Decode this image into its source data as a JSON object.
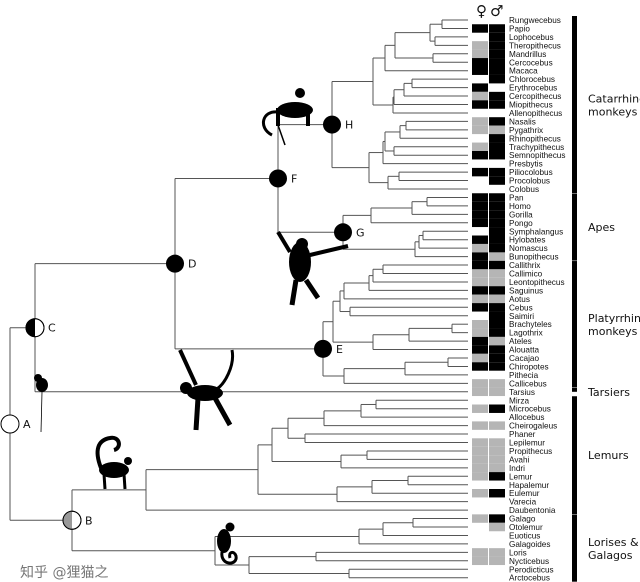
{
  "colors": {
    "present": "#000000",
    "partial": "#b5b5b5",
    "absent": "#ffffff",
    "branch": "#555555"
  },
  "sex_headers": {
    "female": "♀",
    "male": "♂"
  },
  "nodes": [
    {
      "label": "A",
      "fill": "white"
    },
    {
      "label": "B",
      "fill": "half-gray"
    },
    {
      "label": "C",
      "fill": "half-black"
    },
    {
      "label": "D",
      "fill": "black"
    },
    {
      "label": "E",
      "fill": "black"
    },
    {
      "label": "F",
      "fill": "black"
    },
    {
      "label": "G",
      "fill": "black"
    },
    {
      "label": "H",
      "fill": "black"
    }
  ],
  "groups": [
    {
      "line1": "Catarrhine",
      "line2": "monkeys"
    },
    {
      "line1": "Apes",
      "line2": ""
    },
    {
      "line1": "Platyrrhine",
      "line2": "monkeys"
    },
    {
      "line1": "Tarsiers",
      "line2": ""
    },
    {
      "line1": "Lemurs",
      "line2": ""
    },
    {
      "line1": "Lorises &",
      "line2": "Galagos"
    }
  ],
  "genera": [
    {
      "name": "Rungwecebus",
      "f": "w",
      "m": "w"
    },
    {
      "name": "Papio",
      "f": "b",
      "m": "b"
    },
    {
      "name": "Lophocebus",
      "f": "w",
      "m": "b"
    },
    {
      "name": "Theropithecus",
      "f": "g",
      "m": "b"
    },
    {
      "name": "Mandrillus",
      "f": "g",
      "m": "b"
    },
    {
      "name": "Cercocebus",
      "f": "b",
      "m": "b"
    },
    {
      "name": "Macaca",
      "f": "b",
      "m": "b"
    },
    {
      "name": "Chlorocebus",
      "f": "w",
      "m": "b"
    },
    {
      "name": "Erythrocebus",
      "f": "b",
      "m": "w"
    },
    {
      "name": "Cercopithecus",
      "f": "g",
      "m": "b"
    },
    {
      "name": "Miopithecus",
      "f": "b",
      "m": "b"
    },
    {
      "name": "Allenopithecus",
      "f": "w",
      "m": "w"
    },
    {
      "name": "Nasalis",
      "f": "g",
      "m": "b"
    },
    {
      "name": "Pygathrix",
      "f": "g",
      "m": "g"
    },
    {
      "name": "Rhinopithecus",
      "f": "w",
      "m": "b"
    },
    {
      "name": "Trachypithecus",
      "f": "g",
      "m": "b"
    },
    {
      "name": "Semnopithecus",
      "f": "b",
      "m": "b"
    },
    {
      "name": "Presbytis",
      "f": "w",
      "m": "w"
    },
    {
      "name": "Piliocolobus",
      "f": "b",
      "m": "b"
    },
    {
      "name": "Procolobus",
      "f": "w",
      "m": "b"
    },
    {
      "name": "Colobus",
      "f": "w",
      "m": "w"
    },
    {
      "name": "Pan",
      "f": "b",
      "m": "b"
    },
    {
      "name": "Homo",
      "f": "b",
      "m": "b"
    },
    {
      "name": "Gorilla",
      "f": "b",
      "m": "b"
    },
    {
      "name": "Pongo",
      "f": "b",
      "m": "b"
    },
    {
      "name": "Symphalangus",
      "f": "w",
      "m": "b"
    },
    {
      "name": "Hylobates",
      "f": "b",
      "m": "b"
    },
    {
      "name": "Nomascus",
      "f": "g",
      "m": "b"
    },
    {
      "name": "Bunopithecus",
      "f": "b",
      "m": "g"
    },
    {
      "name": "Callithrix",
      "f": "b",
      "m": "b"
    },
    {
      "name": "Callimico",
      "f": "g",
      "m": "g"
    },
    {
      "name": "Leontopithecus",
      "f": "g",
      "m": "g"
    },
    {
      "name": "Saguinus",
      "f": "b",
      "m": "b"
    },
    {
      "name": "Aotus",
      "f": "g",
      "m": "g"
    },
    {
      "name": "Cebus",
      "f": "b",
      "m": "b"
    },
    {
      "name": "Saimiri",
      "f": "w",
      "m": "b"
    },
    {
      "name": "Brachyteles",
      "f": "g",
      "m": "b"
    },
    {
      "name": "Lagothrix",
      "f": "g",
      "m": "b"
    },
    {
      "name": "Ateles",
      "f": "b",
      "m": "g"
    },
    {
      "name": "Alouatta",
      "f": "b",
      "m": "b"
    },
    {
      "name": "Cacajao",
      "f": "g",
      "m": "b"
    },
    {
      "name": "Chiropotes",
      "f": "b",
      "m": "b"
    },
    {
      "name": "Pithecia",
      "f": "w",
      "m": "w"
    },
    {
      "name": "Callicebus",
      "f": "g",
      "m": "g"
    },
    {
      "name": "Tarsius",
      "f": "g",
      "m": "g"
    },
    {
      "name": "Mirza",
      "f": "w",
      "m": "w"
    },
    {
      "name": "Microcebus",
      "f": "g",
      "m": "b"
    },
    {
      "name": "Allocebus",
      "f": "w",
      "m": "w"
    },
    {
      "name": "Cheirogaleus",
      "f": "g",
      "m": "g"
    },
    {
      "name": "Phaner",
      "f": "w",
      "m": "w"
    },
    {
      "name": "Lepilemur",
      "f": "g",
      "m": "g"
    },
    {
      "name": "Propithecus",
      "f": "g",
      "m": "g"
    },
    {
      "name": "Avahi",
      "f": "g",
      "m": "g"
    },
    {
      "name": "Indri",
      "f": "g",
      "m": "g"
    },
    {
      "name": "Lemur",
      "f": "g",
      "m": "b"
    },
    {
      "name": "Hapalemur",
      "f": "w",
      "m": "w"
    },
    {
      "name": "Eulemur",
      "f": "g",
      "m": "b"
    },
    {
      "name": "Varecia",
      "f": "w",
      "m": "w"
    },
    {
      "name": "Daubentonia",
      "f": "w",
      "m": "w"
    },
    {
      "name": "Galago",
      "f": "g",
      "m": "b"
    },
    {
      "name": "Otolemur",
      "f": "w",
      "m": "g"
    },
    {
      "name": "Euoticus",
      "f": "w",
      "m": "w"
    },
    {
      "name": "Galagoides",
      "f": "w",
      "m": "w"
    },
    {
      "name": "Loris",
      "f": "g",
      "m": "g"
    },
    {
      "name": "Nycticebus",
      "f": "g",
      "m": "g"
    },
    {
      "name": "Perodicticus",
      "f": "w",
      "m": "w"
    },
    {
      "name": "Arctocebus",
      "f": "w",
      "m": "w"
    }
  ],
  "watermark": "知乎 @狸猫之"
}
